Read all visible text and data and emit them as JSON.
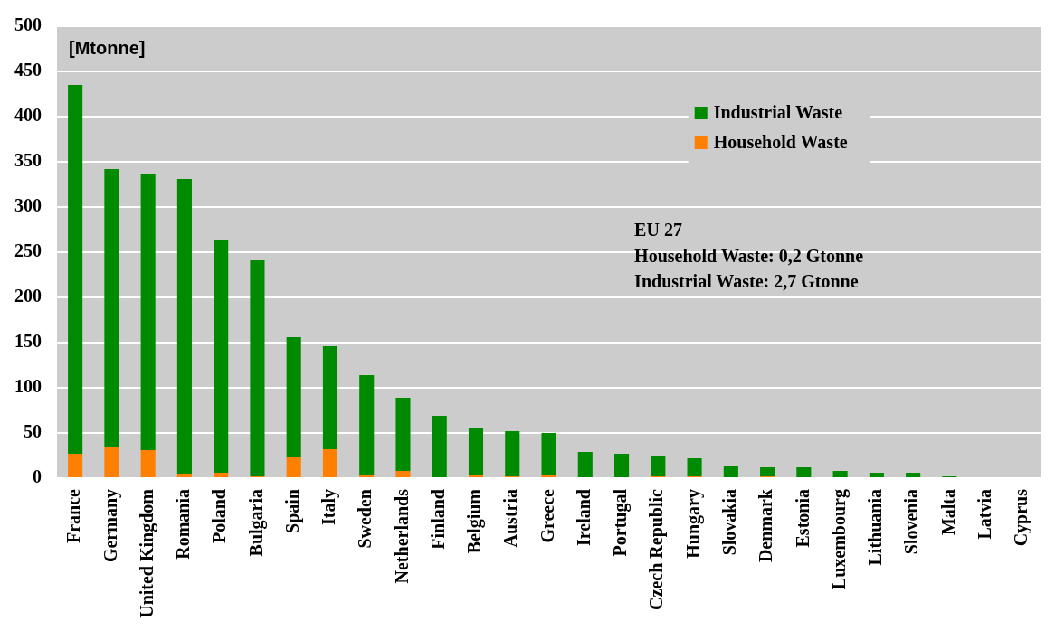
{
  "chart_data": {
    "type": "bar",
    "ylabel": "[Mtonne]",
    "categories": [
      "France",
      "Germany",
      "United Kingdom",
      "Romania",
      "Poland",
      "Bulgaria",
      "Spain",
      "Italy",
      "Sweden",
      "Netherlands",
      "Finland",
      "Belgium",
      "Austria",
      "Greece",
      "Ireland",
      "Portugal",
      "Czech Republic",
      "Hungary",
      "Slovakia",
      "Denmark",
      "Estonia",
      "Luxembourg",
      "Lithuania",
      "Slovenia",
      "Malta",
      "Latvia",
      "Cyprus"
    ],
    "series": [
      {
        "name": "Household Waste",
        "color": "#ff8000",
        "values": [
          27,
          34,
          31,
          5,
          6,
          2,
          23,
          32,
          3,
          8,
          0,
          4,
          2,
          4,
          1,
          0,
          2,
          2,
          0,
          2,
          0,
          0,
          0,
          0,
          0,
          0,
          0
        ]
      },
      {
        "name": "Industrial Waste",
        "color": "#008a00",
        "values": [
          408,
          308,
          306,
          326,
          258,
          239,
          133,
          114,
          111,
          81,
          69,
          52,
          50,
          46,
          28,
          27,
          22,
          20,
          14,
          10,
          12,
          8,
          6,
          6,
          2,
          1,
          1
        ]
      }
    ],
    "stacked": true,
    "ylim": [
      0,
      500
    ],
    "yticks": [
      0,
      50,
      100,
      150,
      200,
      250,
      300,
      350,
      400,
      450,
      500
    ],
    "grid": "y",
    "legend": "top right",
    "annotations": [
      "EU 27",
      "Household Waste: 0,2 Gtonne",
      "Industrial Waste: 2,7 Gtonne"
    ]
  }
}
